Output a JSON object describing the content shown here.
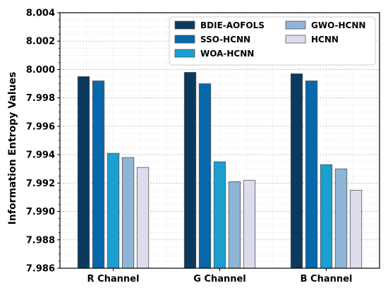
{
  "chart_data": {
    "type": "bar",
    "title": "",
    "xlabel": "",
    "ylabel": "Information Entropy Values",
    "ylim": [
      7.986,
      8.004
    ],
    "yticks": [
      "7.986",
      "7.988",
      "7.990",
      "7.992",
      "7.994",
      "7.996",
      "7.998",
      "8.000",
      "8.002",
      "8.004"
    ],
    "categories": [
      "R Channel",
      "G Channel",
      "B Channel"
    ],
    "grid": true,
    "legend_position": "top-right",
    "series": [
      {
        "name": "BDIE-AOFOLS",
        "color": "#0b3a5e",
        "values": [
          7.9995,
          7.9998,
          7.9997
        ]
      },
      {
        "name": "SSO-HCNN",
        "color": "#0868ac",
        "values": [
          7.9992,
          7.999,
          7.9992
        ]
      },
      {
        "name": "WOA-HCNN",
        "color": "#1a9fd0",
        "values": [
          7.9941,
          7.9935,
          7.9933
        ]
      },
      {
        "name": "GWO-HCNN",
        "color": "#8fb5d6",
        "values": [
          7.9938,
          7.9921,
          7.993
        ]
      },
      {
        "name": "HCNN",
        "color": "#dcdcec",
        "values": [
          7.9931,
          7.9922,
          7.9915
        ]
      }
    ]
  }
}
